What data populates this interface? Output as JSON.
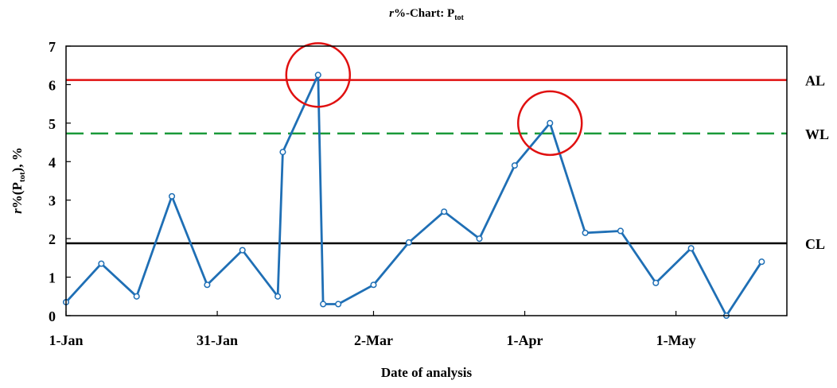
{
  "chart_data": {
    "type": "line",
    "title": {
      "italic": "r",
      "main": "%-Chart: P",
      "sub": "tot"
    },
    "xlabel": "Date of analysis",
    "ylabel": {
      "italic": "r",
      "a": "%(P",
      "sub": "tot",
      "b": "), %"
    },
    "ylim": [
      0,
      7
    ],
    "yticks": [
      0,
      1,
      2,
      3,
      4,
      5,
      6,
      7
    ],
    "xlim": [
      "2016-01-01",
      "2016-05-23"
    ],
    "xticks": [
      {
        "date": "2016-01-01",
        "label": "1-Jan"
      },
      {
        "date": "2016-01-31",
        "label": "31-Jan"
      },
      {
        "date": "2016-03-02",
        "label": "2-Mar"
      },
      {
        "date": "2016-04-01",
        "label": "1-Apr"
      },
      {
        "date": "2016-05-01",
        "label": "1-May"
      }
    ],
    "series": [
      {
        "color": "#1f6fb5",
        "points": [
          {
            "x": "2016-01-01",
            "y": 0.35
          },
          {
            "x": "2016-01-08",
            "y": 1.35
          },
          {
            "x": "2016-01-15",
            "y": 0.5
          },
          {
            "x": "2016-01-22",
            "y": 3.1
          },
          {
            "x": "2016-01-29",
            "y": 0.8
          },
          {
            "x": "2016-02-05",
            "y": 1.7
          },
          {
            "x": "2016-02-12",
            "y": 0.5
          },
          {
            "x": "2016-02-13",
            "y": 4.25
          },
          {
            "x": "2016-02-20",
            "y": 6.25
          },
          {
            "x": "2016-02-21",
            "y": 0.3
          },
          {
            "x": "2016-02-24",
            "y": 0.3
          },
          {
            "x": "2016-03-02",
            "y": 0.8
          },
          {
            "x": "2016-03-09",
            "y": 1.9
          },
          {
            "x": "2016-03-16",
            "y": 2.7
          },
          {
            "x": "2016-03-23",
            "y": 2.0
          },
          {
            "x": "2016-03-30",
            "y": 3.9
          },
          {
            "x": "2016-04-06",
            "y": 5.0
          },
          {
            "x": "2016-04-13",
            "y": 2.15
          },
          {
            "x": "2016-04-20",
            "y": 2.2
          },
          {
            "x": "2016-04-27",
            "y": 0.85
          },
          {
            "x": "2016-05-04",
            "y": 1.75
          },
          {
            "x": "2016-05-11",
            "y": 0.0
          },
          {
            "x": "2016-05-18",
            "y": 1.4
          }
        ]
      }
    ],
    "reference_lines": [
      {
        "label": "AL",
        "y": 6.12,
        "color": "#e01010",
        "style": "solid"
      },
      {
        "label": "WL",
        "y": 4.73,
        "color": "#1a9a3a",
        "style": "dashed"
      },
      {
        "label": "CL",
        "y": 1.88,
        "color": "#000000",
        "style": "solid"
      }
    ],
    "highlights": [
      {
        "x": "2016-02-20",
        "y": 6.25,
        "color": "#e01010"
      },
      {
        "x": "2016-04-06",
        "y": 5.0,
        "color": "#e01010"
      }
    ],
    "grid": false,
    "legend": "none"
  }
}
